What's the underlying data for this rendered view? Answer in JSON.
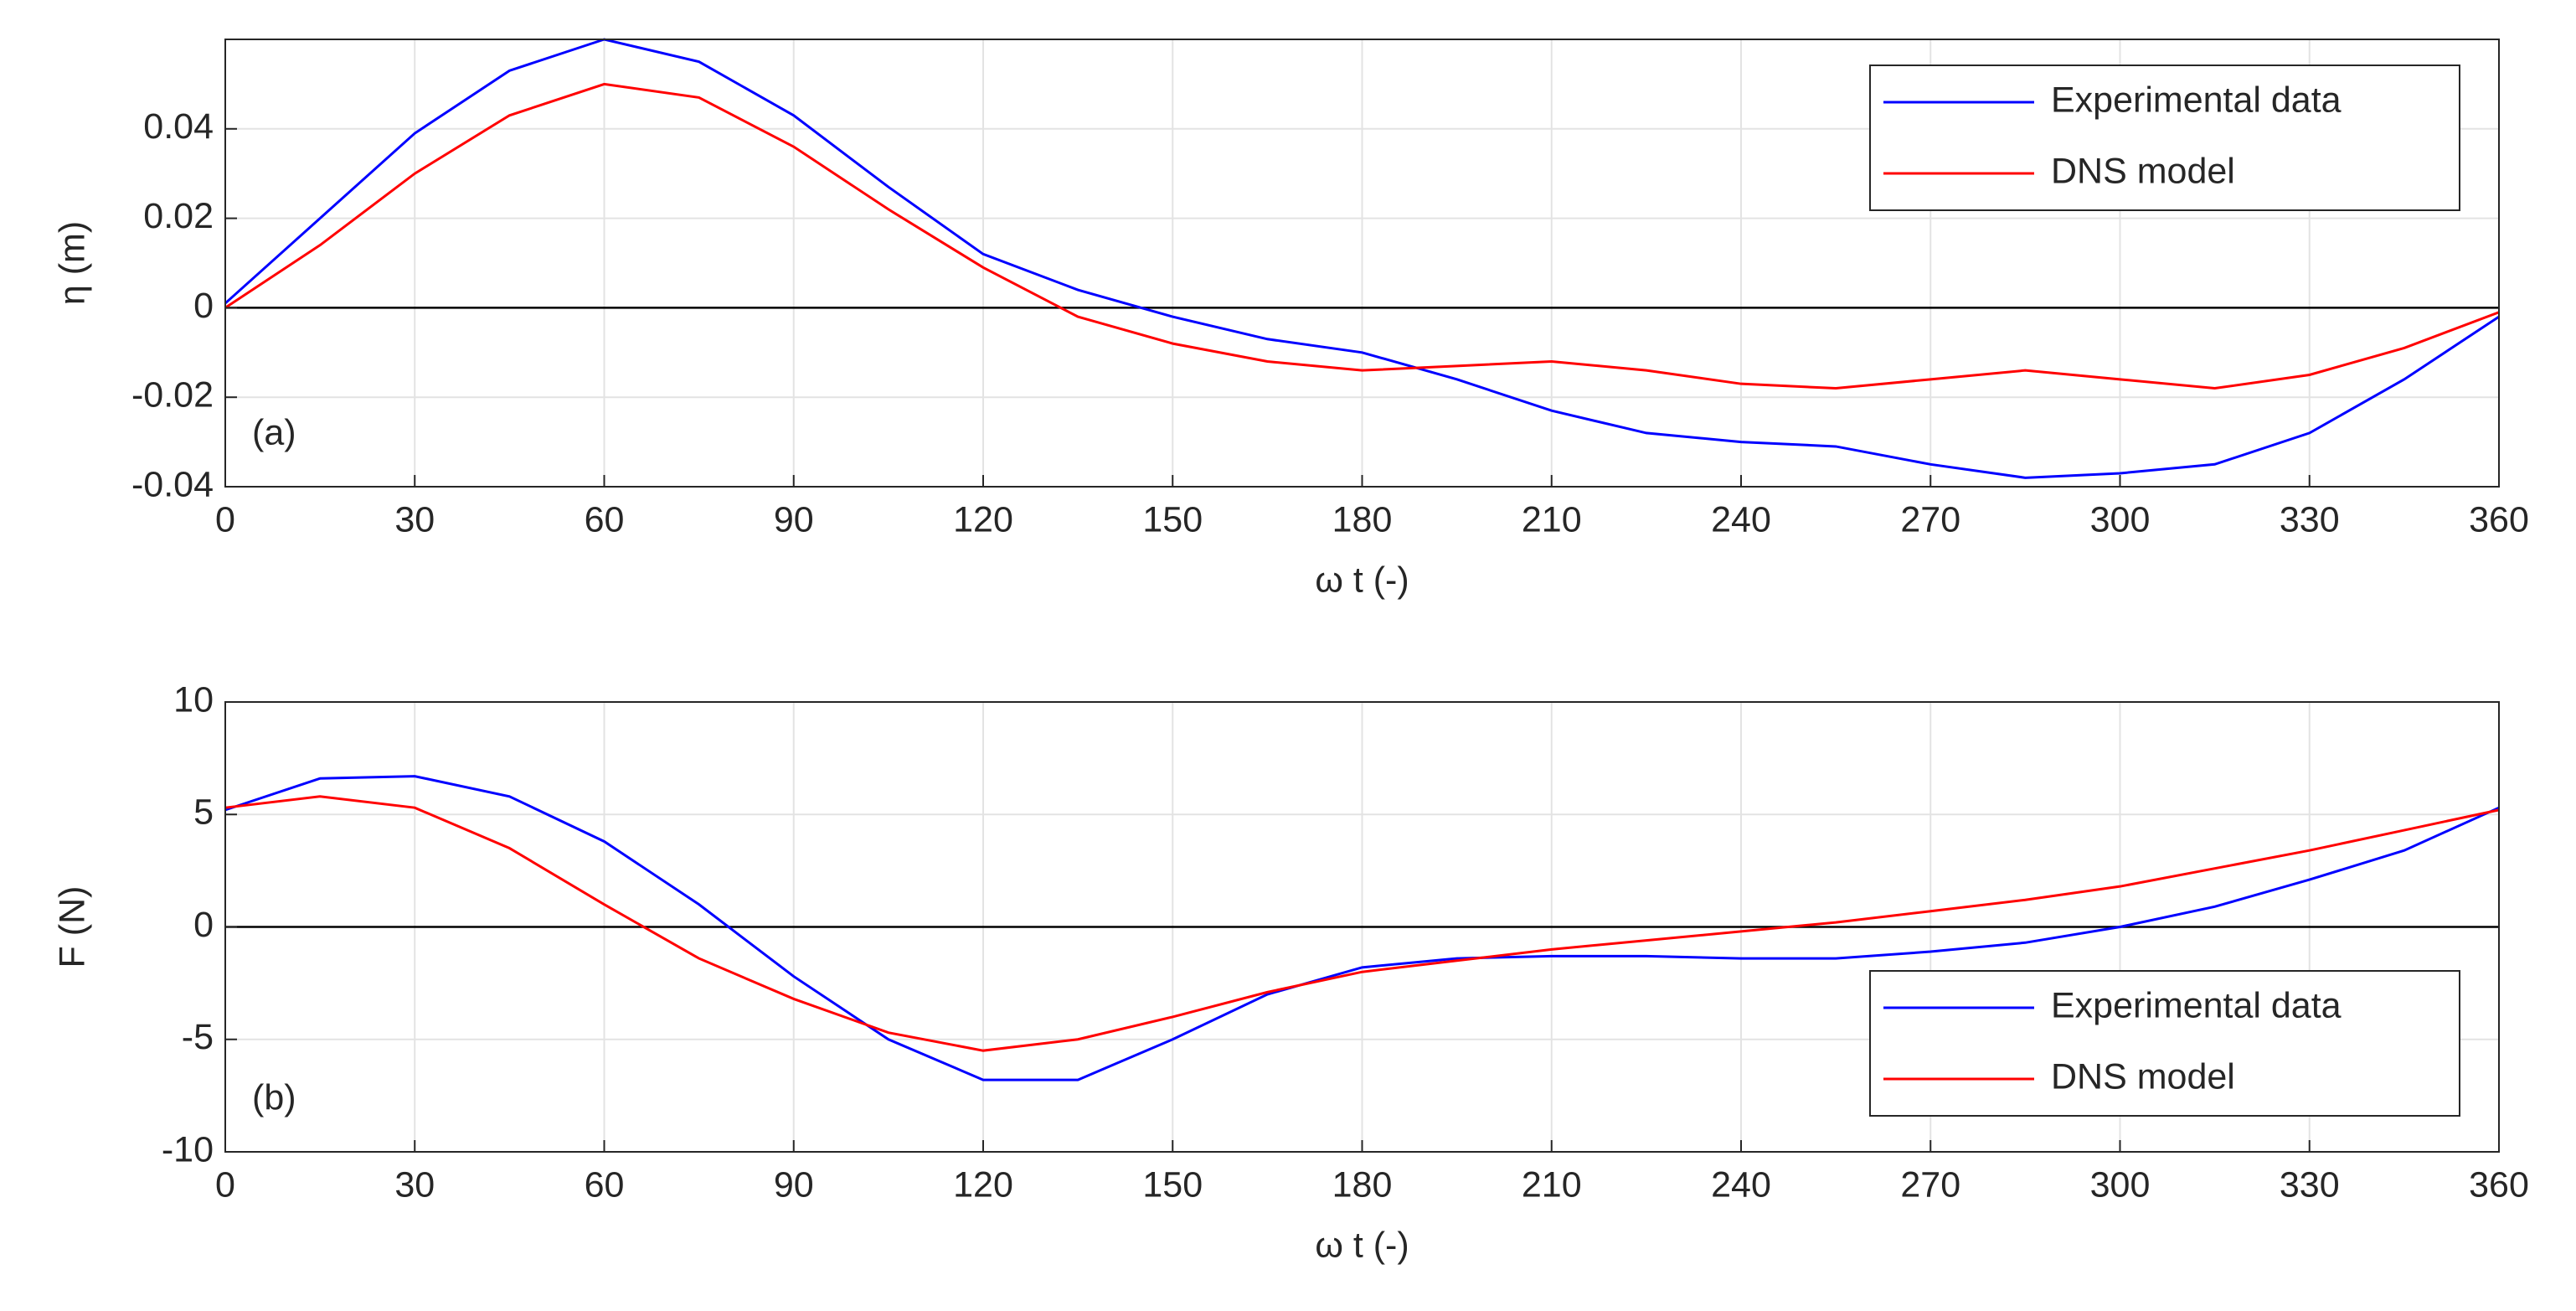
{
  "chart_data": [
    {
      "type": "line",
      "panel_label": "(a)",
      "x_label": "ω t (-)",
      "y_label": "η (m)",
      "x": [
        0,
        15,
        30,
        45,
        60,
        75,
        90,
        105,
        120,
        135,
        150,
        165,
        180,
        195,
        210,
        225,
        240,
        255,
        270,
        285,
        300,
        315,
        330,
        345,
        360
      ],
      "series": [
        {
          "name": "Experimental data",
          "color": "#0000ff",
          "values": [
            0.001,
            0.02,
            0.039,
            0.053,
            0.06,
            0.055,
            0.043,
            0.027,
            0.012,
            0.004,
            -0.002,
            -0.007,
            -0.01,
            -0.016,
            -0.023,
            -0.028,
            -0.03,
            -0.031,
            -0.035,
            -0.038,
            -0.037,
            -0.035,
            -0.028,
            -0.016,
            -0.002
          ]
        },
        {
          "name": "DNS model",
          "color": "#ff0000",
          "values": [
            0,
            0.014,
            0.03,
            0.043,
            0.05,
            0.047,
            0.036,
            0.022,
            0.009,
            -0.002,
            -0.008,
            -0.012,
            -0.014,
            -0.013,
            -0.012,
            -0.014,
            -0.017,
            -0.018,
            -0.016,
            -0.014,
            -0.016,
            -0.018,
            -0.015,
            -0.009,
            -0.001
          ]
        }
      ],
      "xlim": [
        0,
        360
      ],
      "xticks": [
        0,
        30,
        60,
        90,
        120,
        150,
        180,
        210,
        240,
        270,
        300,
        330,
        360
      ],
      "ylim": [
        -0.04,
        0.06
      ],
      "yticks": [
        -0.04,
        -0.02,
        0,
        0.02,
        0.04
      ],
      "grid": true,
      "legend": "top-right"
    },
    {
      "type": "line",
      "panel_label": "(b)",
      "x_label": "ω t (-)",
      "y_label": "F (N)",
      "x": [
        0,
        15,
        30,
        45,
        60,
        75,
        90,
        105,
        120,
        135,
        150,
        165,
        180,
        195,
        210,
        225,
        240,
        255,
        270,
        285,
        300,
        315,
        330,
        345,
        360
      ],
      "series": [
        {
          "name": "Experimental data",
          "color": "#0000ff",
          "values": [
            5.2,
            6.6,
            6.7,
            5.8,
            3.8,
            1.0,
            -2.2,
            -5.0,
            -6.8,
            -6.8,
            -5.0,
            -3.0,
            -1.8,
            -1.4,
            -1.3,
            -1.3,
            -1.4,
            -1.4,
            -1.1,
            -0.7,
            0,
            0.9,
            2.1,
            3.4,
            5.3
          ]
        },
        {
          "name": "DNS model",
          "color": "#ff0000",
          "values": [
            5.3,
            5.8,
            5.3,
            3.5,
            1.0,
            -1.4,
            -3.2,
            -4.7,
            -5.5,
            -5.0,
            -4.0,
            -2.9,
            -2.0,
            -1.5,
            -1.0,
            -0.6,
            -0.2,
            0.2,
            0.7,
            1.2,
            1.8,
            2.6,
            3.4,
            4.3,
            5.2
          ]
        }
      ],
      "xlim": [
        0,
        360
      ],
      "xticks": [
        0,
        30,
        60,
        90,
        120,
        150,
        180,
        210,
        240,
        270,
        300,
        330,
        360
      ],
      "ylim": [
        -10,
        10
      ],
      "yticks": [
        -10,
        -5,
        0,
        5,
        10
      ],
      "grid": true,
      "legend": "bottom-right"
    }
  ]
}
